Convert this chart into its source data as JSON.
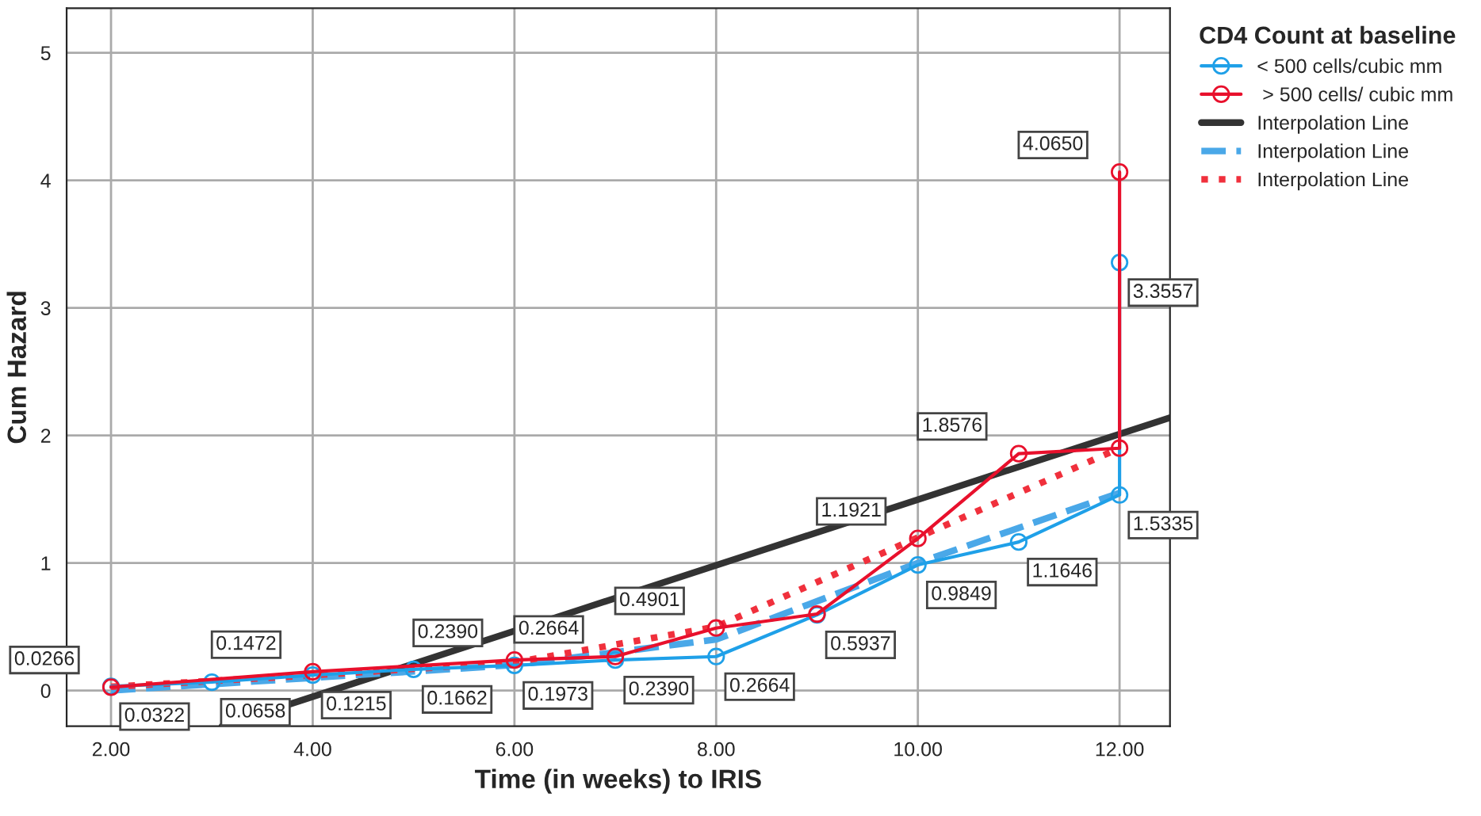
{
  "chart_data": {
    "type": "line",
    "xlabel": "Time (in weeks) to IRIS",
    "ylabel": "Cum Hazard",
    "legend_title": "CD4 Count at baseline",
    "xlim": [
      1.56,
      12.5
    ],
    "ylim": [
      -0.28,
      5.35
    ],
    "xticks": [
      {
        "value": 2,
        "label": "2.00"
      },
      {
        "value": 4,
        "label": "4.00"
      },
      {
        "value": 6,
        "label": "6.00"
      },
      {
        "value": 8,
        "label": "8.00"
      },
      {
        "value": 10,
        "label": "10.00"
      },
      {
        "value": 12,
        "label": "12.00"
      }
    ],
    "yticks": [
      0,
      1,
      2,
      3,
      4,
      5
    ],
    "grid": true,
    "legend": "right",
    "marker": "circle",
    "series": [
      {
        "name": "< 500 cells/cubic mm",
        "color": "#1fa0e8",
        "x": [
          2,
          3,
          4,
          5,
          6,
          7,
          8,
          9,
          10,
          11,
          12,
          12
        ],
        "values": [
          0.0322,
          0.0658,
          0.1215,
          0.1662,
          0.1973,
          0.239,
          0.2664,
          0.5937,
          0.9849,
          1.1646,
          1.5335,
          3.3557
        ],
        "value_labels": [
          "0.0322",
          "0.0658",
          "0.1215",
          "0.1662",
          "0.1973",
          "0.2390",
          "0.2664",
          "0.5937",
          "0.9849",
          "1.1646",
          "1.5335",
          "3.3557"
        ]
      },
      {
        "name": " > 500 cells/ cubic mm",
        "color": "#e8102c",
        "x": [
          2,
          4,
          6,
          7,
          8,
          9,
          10,
          11,
          12,
          12
        ],
        "values": [
          0.0266,
          0.1472,
          0.239,
          0.2664,
          0.4901,
          0.6,
          1.1921,
          1.8576,
          1.9,
          4.065
        ],
        "value_labels": [
          "0.0266",
          "0.1472",
          "0.2390",
          "0.2664",
          "0.4901",
          null,
          "1.1921",
          "1.8576",
          null,
          "4.0650"
        ]
      },
      {
        "name": "Interpolation Line",
        "type": "line",
        "marker": "none",
        "color": "#333333",
        "line_style": "solid",
        "x": [
          3.1,
          12.5
        ],
        "values": [
          -0.28,
          2.14
        ]
      },
      {
        "name": "Interpolation Line",
        "type": "line",
        "marker": "none",
        "color": "#4aa8e8",
        "line_style": "dashed",
        "x": [
          2,
          4,
          6,
          8,
          10,
          12
        ],
        "values": [
          0.0,
          0.1,
          0.2,
          0.4,
          1.0,
          1.55
        ]
      },
      {
        "name": "Interpolation Line",
        "type": "line",
        "marker": "none",
        "color": "#f0303c",
        "line_style": "dotted",
        "x": [
          2,
          4,
          6,
          8,
          10,
          12
        ],
        "values": [
          0.03,
          0.12,
          0.22,
          0.5,
          1.2,
          1.9
        ]
      }
    ]
  }
}
